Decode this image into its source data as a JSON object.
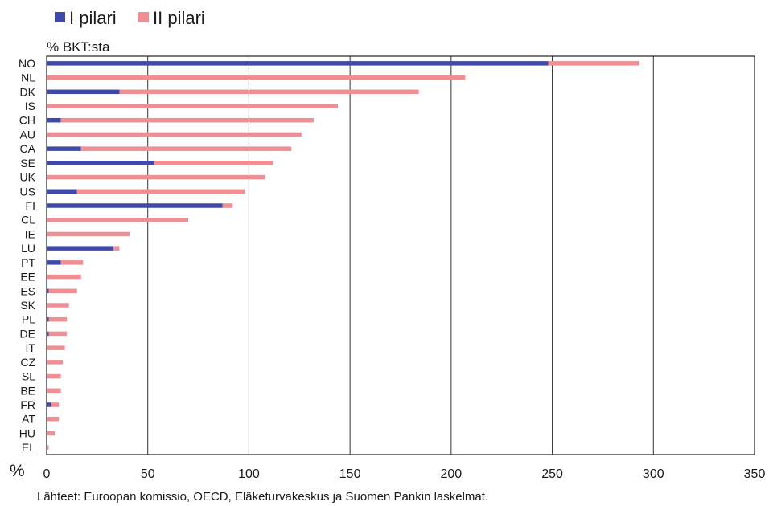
{
  "chart_data": {
    "type": "bar",
    "orientation": "horizontal",
    "stacked": true,
    "unit_label": "% BKT:sta",
    "x_axis_symbol": "%",
    "source": "Lähteet: Euroopan komissio, OECD, Eläketurvakeskus ja Suomen Pankin laskelmat.",
    "categories": [
      "NO",
      "NL",
      "DK",
      "IS",
      "CH",
      "AU",
      "CA",
      "SE",
      "UK",
      "US",
      "FI",
      "CL",
      "IE",
      "LU",
      "PT",
      "EE",
      "ES",
      "SK",
      "PL",
      "DE",
      "IT",
      "CZ",
      "SL",
      "BE",
      "FR",
      "AT",
      "HU",
      "EL"
    ],
    "series": [
      {
        "name": "I pilari",
        "color": "#3f4aa8",
        "values": [
          248,
          0,
          36,
          0,
          7,
          0,
          17,
          53,
          0,
          15,
          87,
          0,
          0,
          33,
          7,
          0,
          1,
          0,
          1,
          1,
          0,
          0,
          0,
          0,
          2,
          0,
          0,
          0
        ]
      },
      {
        "name": "II pilari",
        "color": "#ef8e93",
        "values": [
          45,
          207,
          148,
          144,
          125,
          126,
          104,
          59,
          108,
          83,
          5,
          70,
          41,
          3,
          11,
          17,
          14,
          11,
          9,
          9,
          9,
          8,
          7,
          7,
          4,
          6,
          4,
          1
        ]
      }
    ],
    "xlim": [
      0,
      350
    ],
    "xticks": [
      0,
      50,
      100,
      150,
      200,
      250,
      300,
      350
    ],
    "legend_position": "top-left",
    "grid": "vertical"
  }
}
